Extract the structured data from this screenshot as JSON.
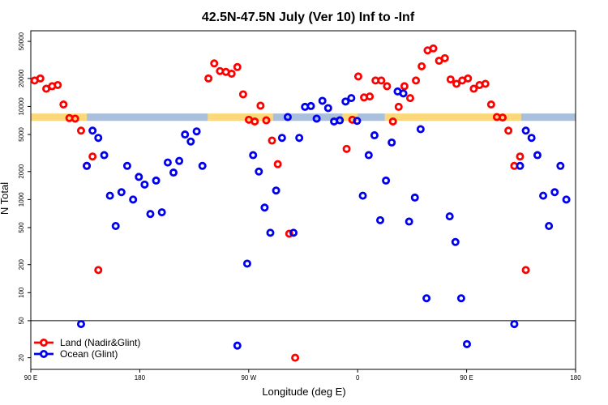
{
  "chart_data": {
    "type": "scatter",
    "title": "42.5N-47.5N July (Ver 10)   Inf to -Inf",
    "xlabel": "Longitude (deg E)",
    "ylabel": "N Total",
    "xlim": [
      0,
      360
    ],
    "ylim": [
      15,
      65000
    ],
    "y_scale": "log",
    "x_ticks": [
      {
        "x": 0,
        "label": "90 E"
      },
      {
        "x": 72,
        "label": "180"
      },
      {
        "x": 144,
        "label": "90 W"
      },
      {
        "x": 216,
        "label": "0"
      },
      {
        "x": 288,
        "label": "90 E"
      },
      {
        "x": 360,
        "label": "180"
      }
    ],
    "y_ticks": [
      20,
      50,
      100,
      200,
      500,
      1000,
      2000,
      5000,
      10000,
      20000,
      50000
    ],
    "reference_line_y": 50,
    "legend_position": "bottom-left",
    "colors": {
      "land": "#ff0000",
      "ocean": "#0000ee",
      "band_land": "#fbd97a",
      "band_ocean": "#a9bfdc"
    },
    "land_mask_band": {
      "y_range": [
        7000,
        8400
      ],
      "segments": [
        {
          "from": 0,
          "to": 37,
          "kind": "land"
        },
        {
          "from": 37,
          "to": 117,
          "kind": "ocean"
        },
        {
          "from": 117,
          "to": 160,
          "kind": "land"
        },
        {
          "from": 160,
          "to": 206,
          "kind": "ocean"
        },
        {
          "from": 206,
          "to": 216,
          "kind": "land"
        },
        {
          "from": 216,
          "to": 234,
          "kind": "ocean"
        },
        {
          "from": 234,
          "to": 324,
          "kind": "land"
        },
        {
          "from": 324,
          "to": 360,
          "kind": "ocean"
        }
      ]
    },
    "series": [
      {
        "name": "Land (Nadir&Glint)",
        "key": "land",
        "points": [
          [
            2.5,
            19000
          ],
          [
            6.3,
            20000
          ],
          [
            10.2,
            15500
          ],
          [
            14.1,
            16500
          ],
          [
            17.8,
            17000
          ],
          [
            21.6,
            10500
          ],
          [
            25.5,
            7500
          ],
          [
            29.3,
            7400
          ],
          [
            33.2,
            5500
          ],
          [
            37.0,
            2300
          ],
          [
            40.8,
            2900
          ],
          [
            44.6,
            175
          ],
          [
            117.4,
            20000
          ],
          [
            121.2,
            29000
          ],
          [
            125.0,
            24000
          ],
          [
            128.9,
            23500
          ],
          [
            132.7,
            22500
          ],
          [
            136.5,
            26500
          ],
          [
            140.3,
            13500
          ],
          [
            144.1,
            7200
          ],
          [
            148.0,
            6900
          ],
          [
            151.8,
            10200
          ],
          [
            155.6,
            7100
          ],
          [
            159.4,
            4300
          ],
          [
            163.2,
            2400
          ],
          [
            170.8,
            430
          ],
          [
            174.7,
            20
          ],
          [
            208.7,
            3500
          ],
          [
            212.5,
            7200
          ],
          [
            216.4,
            21000
          ],
          [
            220.2,
            12500
          ],
          [
            224.0,
            12800
          ],
          [
            227.8,
            19000
          ],
          [
            231.6,
            19000
          ],
          [
            235.4,
            16500
          ],
          [
            239.3,
            6900
          ],
          [
            243.1,
            9900
          ],
          [
            246.9,
            16500
          ],
          [
            250.7,
            12300
          ],
          [
            254.5,
            19000
          ],
          [
            258.3,
            27000
          ],
          [
            262.2,
            40000
          ],
          [
            266.0,
            42000
          ],
          [
            269.8,
            31000
          ],
          [
            273.6,
            33000
          ],
          [
            277.4,
            19500
          ],
          [
            281.3,
            17500
          ],
          [
            285.1,
            19000
          ],
          [
            288.9,
            20000
          ],
          [
            292.7,
            15500
          ],
          [
            296.5,
            17000
          ],
          [
            300.4,
            17500
          ],
          [
            304.2,
            10500
          ],
          [
            308.0,
            7700
          ],
          [
            311.8,
            7600
          ],
          [
            315.6,
            5500
          ],
          [
            319.5,
            2300
          ],
          [
            323.3,
            2900
          ],
          [
            327.1,
            175
          ]
        ]
      },
      {
        "name": "Ocean (Glint)",
        "key": "ocean",
        "points": [
          [
            33.2,
            46
          ],
          [
            37.0,
            2300
          ],
          [
            40.8,
            5500
          ],
          [
            44.6,
            4600
          ],
          [
            48.5,
            3000
          ],
          [
            52.3,
            1100
          ],
          [
            56.1,
            520
          ],
          [
            59.9,
            1200
          ],
          [
            63.7,
            2300
          ],
          [
            67.6,
            1000
          ],
          [
            71.4,
            1750
          ],
          [
            75.2,
            1450
          ],
          [
            79.0,
            700
          ],
          [
            82.8,
            1600
          ],
          [
            86.6,
            730
          ],
          [
            90.5,
            2500
          ],
          [
            94.3,
            1950
          ],
          [
            98.1,
            2600
          ],
          [
            101.9,
            5000
          ],
          [
            105.7,
            4200
          ],
          [
            109.6,
            5400
          ],
          [
            113.4,
            2300
          ],
          [
            136.5,
            27
          ],
          [
            143.0,
            205
          ],
          [
            146.9,
            3000
          ],
          [
            150.7,
            2000
          ],
          [
            154.5,
            820
          ],
          [
            158.3,
            440
          ],
          [
            162.1,
            1250
          ],
          [
            166.0,
            4600
          ],
          [
            169.8,
            7700
          ],
          [
            173.6,
            440
          ],
          [
            177.4,
            4600
          ],
          [
            181.2,
            9900
          ],
          [
            185.1,
            10100
          ],
          [
            188.9,
            7400
          ],
          [
            192.7,
            11500
          ],
          [
            196.5,
            9600
          ],
          [
            200.4,
            6900
          ],
          [
            204.2,
            7100
          ],
          [
            208.0,
            11300
          ],
          [
            211.8,
            12300
          ],
          [
            215.6,
            7000
          ],
          [
            219.4,
            1100
          ],
          [
            223.3,
            3000
          ],
          [
            227.1,
            4900
          ],
          [
            230.9,
            600
          ],
          [
            234.7,
            1600
          ],
          [
            238.5,
            4100
          ],
          [
            242.4,
            14500
          ],
          [
            246.2,
            13800
          ],
          [
            250.0,
            580
          ],
          [
            253.8,
            1050
          ],
          [
            257.6,
            5700
          ],
          [
            261.5,
            87
          ],
          [
            276.8,
            660
          ],
          [
            280.6,
            350
          ],
          [
            284.4,
            87
          ],
          [
            288.2,
            28
          ],
          [
            319.5,
            46
          ],
          [
            323.3,
            2300
          ],
          [
            327.1,
            5500
          ],
          [
            330.9,
            4600
          ],
          [
            334.8,
            3000
          ],
          [
            338.6,
            1100
          ],
          [
            342.4,
            520
          ],
          [
            346.2,
            1200
          ],
          [
            350.0,
            2300
          ],
          [
            353.9,
            1000
          ]
        ]
      }
    ]
  }
}
